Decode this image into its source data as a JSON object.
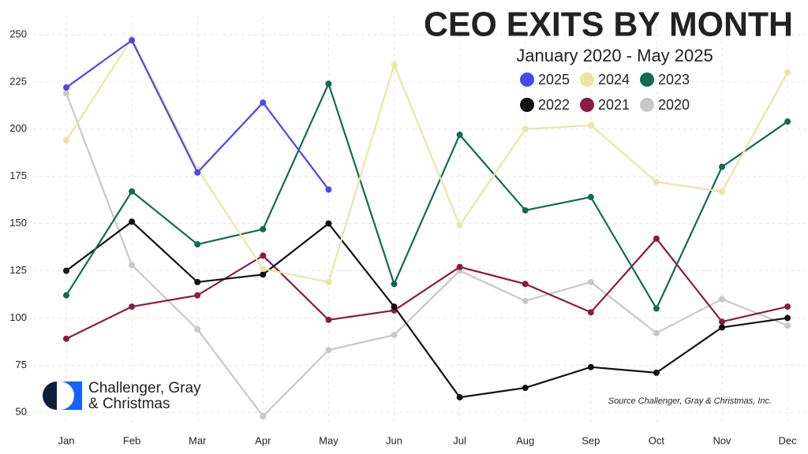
{
  "chart_data": {
    "type": "line",
    "title": "CEO EXITS BY MONTH",
    "subtitle": "January 2020 - May 2025",
    "source": "Source Challenger, Gray & Christmas, Inc.",
    "logo_text": [
      "Challenger, Gray",
      "& Christmas"
    ],
    "categories": [
      "Jan",
      "Feb",
      "Mar",
      "Apr",
      "May",
      "Jun",
      "Jul",
      "Aug",
      "Sep",
      "Oct",
      "Nov",
      "Dec"
    ],
    "series": [
      {
        "name": "2025",
        "color": "#4b47f2",
        "values": [
          222,
          247,
          177,
          214,
          168,
          null,
          null,
          null,
          null,
          null,
          null,
          null
        ]
      },
      {
        "name": "2024",
        "color": "#e9e6a1",
        "values": [
          194,
          248,
          179,
          126,
          119,
          234,
          149,
          200,
          202,
          172,
          167,
          230
        ]
      },
      {
        "name": "2023",
        "color": "#0f6b52",
        "values": [
          112,
          167,
          139,
          147,
          224,
          118,
          197,
          157,
          164,
          105,
          180,
          204
        ]
      },
      {
        "name": "2022",
        "color": "#111111",
        "values": [
          125,
          151,
          119,
          123,
          150,
          106,
          58,
          63,
          74,
          71,
          95,
          100
        ]
      },
      {
        "name": "2021",
        "color": "#8b1a45",
        "values": [
          89,
          106,
          112,
          133,
          99,
          104,
          127,
          118,
          103,
          142,
          98,
          106
        ]
      },
      {
        "name": "2020",
        "color": "#c8c8c8",
        "values": [
          219,
          128,
          94,
          48,
          83,
          91,
          125,
          109,
          119,
          92,
          110,
          96
        ]
      }
    ],
    "ylim": [
      43,
      260
    ],
    "yticks": [
      50,
      75,
      100,
      125,
      150,
      175,
      200,
      225,
      250
    ],
    "grid": true
  }
}
